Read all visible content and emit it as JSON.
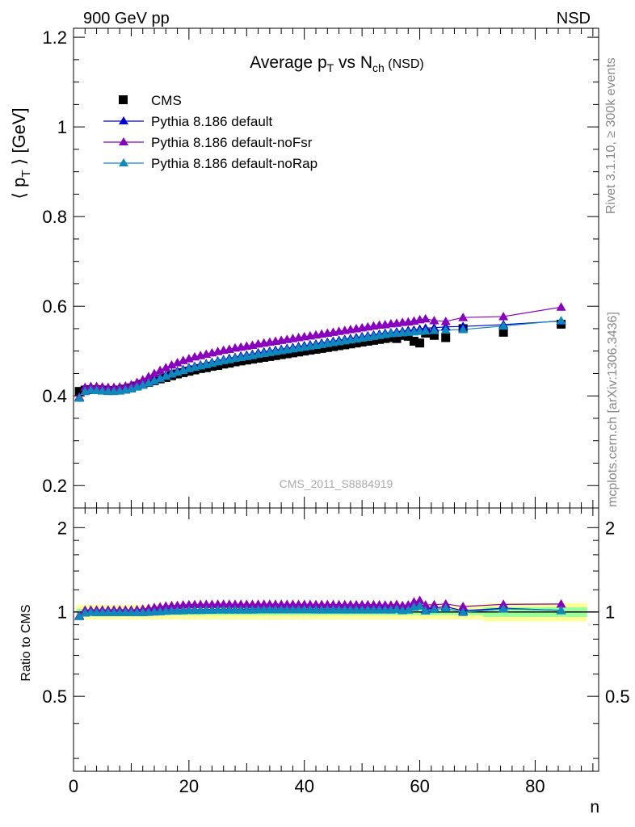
{
  "header": {
    "left": "900 GeV pp",
    "right": "NSD"
  },
  "side_labels": {
    "rivet": "Rivet 3.1.10, ≥ 300k events",
    "mcplots": "mcplots.cern.ch [arXiv:1306.3436]"
  },
  "watermark": "CMS_2011_S8884919",
  "colors": {
    "cms": "#000000",
    "pythia_default": "#0000cc",
    "pythia_nofsr": "#8800bb",
    "pythia_norap": "#1188bb",
    "band_yellow": "#ffff99",
    "band_green": "#99ff99"
  },
  "chart_data": [
    {
      "type": "scatter",
      "title": "Average p_T vs N_ch (NSD)",
      "title_parts": {
        "a": "Average p",
        "a_sub": "T",
        "b": " vs N",
        "b_sub": "ch",
        "c": " (NSD)"
      },
      "ylabel": "⟨ p_T ⟩ [GeV]",
      "ylabel_parts": {
        "a": "⟨ p",
        "sub": "T",
        "b": " ⟩ [GeV]"
      },
      "xlabel": "n",
      "xlim": [
        0,
        91
      ],
      "ylim": [
        0.15,
        1.22
      ],
      "yticks": [
        0.2,
        0.4,
        0.6,
        0.8,
        1,
        1.2
      ],
      "ytick_labels": [
        "0.2",
        "0.4",
        "0.6",
        "0.8",
        "1",
        "1.2"
      ],
      "legend_position": "top-left",
      "x": [
        1,
        2,
        3,
        4,
        5,
        6,
        7,
        8,
        9,
        10,
        11,
        12,
        13,
        14,
        15,
        16,
        17,
        18,
        19,
        20,
        21,
        22,
        23,
        24,
        25,
        26,
        27,
        28,
        29,
        30,
        31,
        32,
        33,
        34,
        35,
        36,
        37,
        38,
        39,
        40,
        41,
        42,
        43,
        44,
        45,
        46,
        47,
        48,
        49,
        50,
        51,
        52,
        53,
        54,
        55,
        56,
        57,
        58,
        59,
        60,
        61,
        62.5,
        64.5,
        67.5,
        74.5,
        84.5
      ],
      "series": [
        {
          "name": "CMS",
          "marker": "square",
          "y": [
            0.41,
            0.413,
            0.414,
            0.414,
            0.413,
            0.412,
            0.412,
            0.413,
            0.415,
            0.418,
            0.422,
            0.426,
            0.43,
            0.434,
            0.438,
            0.441,
            0.445,
            0.449,
            0.452,
            0.455,
            0.458,
            0.461,
            0.463,
            0.466,
            0.468,
            0.471,
            0.473,
            0.476,
            0.478,
            0.48,
            0.482,
            0.484,
            0.486,
            0.488,
            0.49,
            0.492,
            0.494,
            0.496,
            0.498,
            0.5,
            0.502,
            0.504,
            0.506,
            0.508,
            0.51,
            0.512,
            0.514,
            0.516,
            0.518,
            0.52,
            0.522,
            0.524,
            0.526,
            0.528,
            0.53,
            0.528,
            0.535,
            0.533,
            0.522,
            0.518,
            0.54,
            0.535,
            0.53,
            0.55,
            0.542,
            0.56
          ]
        },
        {
          "name": "Pythia 8.186 default",
          "marker": "triangle",
          "y": [
            0.397,
            0.41,
            0.414,
            0.414,
            0.413,
            0.412,
            0.412,
            0.413,
            0.415,
            0.418,
            0.422,
            0.426,
            0.431,
            0.436,
            0.441,
            0.446,
            0.451,
            0.455,
            0.459,
            0.463,
            0.466,
            0.469,
            0.472,
            0.475,
            0.478,
            0.481,
            0.484,
            0.486,
            0.489,
            0.491,
            0.493,
            0.496,
            0.498,
            0.5,
            0.502,
            0.504,
            0.506,
            0.508,
            0.51,
            0.512,
            0.514,
            0.516,
            0.518,
            0.52,
            0.522,
            0.524,
            0.526,
            0.528,
            0.53,
            0.532,
            0.534,
            0.536,
            0.538,
            0.54,
            0.541,
            0.543,
            0.544,
            0.546,
            0.547,
            0.549,
            0.551,
            0.552,
            0.554,
            0.555,
            0.559,
            0.567
          ]
        },
        {
          "name": "Pythia 8.186 default-noFsr",
          "marker": "triangle",
          "y": [
            0.398,
            0.419,
            0.421,
            0.421,
            0.42,
            0.419,
            0.419,
            0.42,
            0.422,
            0.425,
            0.43,
            0.436,
            0.443,
            0.45,
            0.457,
            0.463,
            0.469,
            0.474,
            0.479,
            0.483,
            0.487,
            0.49,
            0.493,
            0.496,
            0.499,
            0.502,
            0.504,
            0.507,
            0.509,
            0.511,
            0.513,
            0.516,
            0.518,
            0.52,
            0.522,
            0.524,
            0.526,
            0.528,
            0.53,
            0.532,
            0.534,
            0.536,
            0.538,
            0.54,
            0.542,
            0.544,
            0.546,
            0.548,
            0.55,
            0.552,
            0.554,
            0.556,
            0.558,
            0.559,
            0.561,
            0.562,
            0.564,
            0.565,
            0.567,
            0.57,
            0.572,
            0.568,
            0.566,
            0.575,
            0.577,
            0.598
          ]
        },
        {
          "name": "Pythia 8.186 default-noRap",
          "marker": "triangle",
          "y": [
            0.395,
            0.41,
            0.413,
            0.412,
            0.411,
            0.41,
            0.41,
            0.411,
            0.413,
            0.416,
            0.42,
            0.424,
            0.429,
            0.434,
            0.439,
            0.444,
            0.449,
            0.453,
            0.457,
            0.461,
            0.464,
            0.467,
            0.47,
            0.473,
            0.476,
            0.479,
            0.481,
            0.484,
            0.486,
            0.488,
            0.49,
            0.493,
            0.495,
            0.497,
            0.499,
            0.501,
            0.503,
            0.505,
            0.507,
            0.509,
            0.511,
            0.513,
            0.515,
            0.517,
            0.519,
            0.521,
            0.523,
            0.525,
            0.527,
            0.529,
            0.531,
            0.533,
            0.535,
            0.537,
            0.539,
            0.54,
            0.541,
            0.542,
            0.543,
            0.544,
            0.545,
            0.546,
            0.547,
            0.548,
            0.556,
            0.568
          ]
        }
      ]
    },
    {
      "type": "scatter",
      "title": "",
      "ylabel": "Ratio to CMS",
      "xlabel": "n",
      "xlim": [
        0,
        91
      ],
      "ylim": [
        0.27,
        2.35
      ],
      "ylog": true,
      "yticks": [
        0.5,
        1,
        2
      ],
      "ytick_labels": [
        "0.5",
        "1",
        "2"
      ],
      "xticks": [
        0,
        20,
        40,
        60,
        80
      ],
      "xtick_labels": [
        "0",
        "20",
        "40",
        "60",
        "80"
      ],
      "reference_line": 1
    }
  ]
}
